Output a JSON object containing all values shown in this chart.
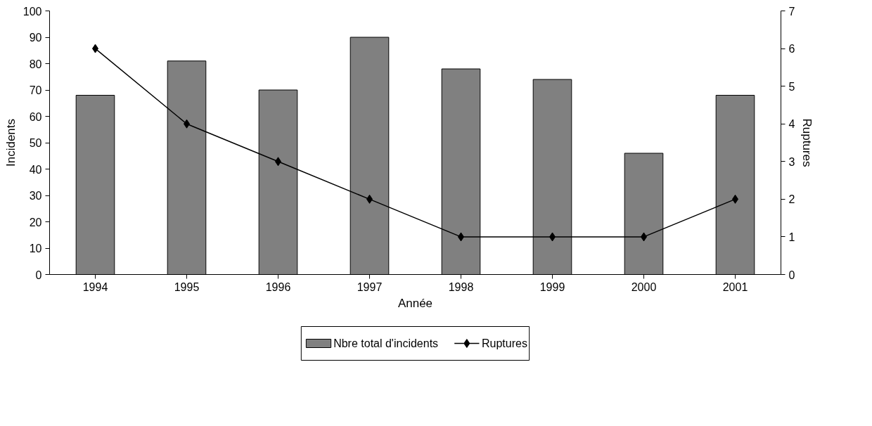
{
  "chart_data": {
    "type": "bar",
    "xlabel": "Année",
    "ylabel": "Incidents",
    "y2label": "Ruptures",
    "categories": [
      "1994",
      "1995",
      "1996",
      "1997",
      "1998",
      "1999",
      "2000",
      "2001"
    ],
    "series": [
      {
        "name": "Nbre total d'incidents",
        "color": "#808080",
        "values": [
          68,
          81,
          70,
          90,
          78,
          74,
          46,
          68
        ]
      },
      {
        "name": "Ruptures",
        "color": "#000000",
        "type": "line",
        "axis": "y2",
        "marker": "diamond",
        "values": [
          6,
          4,
          3,
          2,
          1,
          1,
          1,
          2
        ]
      }
    ],
    "ylim": [
      0,
      100
    ],
    "yticks": [
      0,
      10,
      20,
      30,
      40,
      50,
      60,
      70,
      80,
      90,
      100
    ],
    "y2lim": [
      0,
      7
    ],
    "y2ticks": [
      0,
      1,
      2,
      3,
      4,
      5,
      6,
      7
    ],
    "grid": false,
    "legend": "bottom"
  }
}
